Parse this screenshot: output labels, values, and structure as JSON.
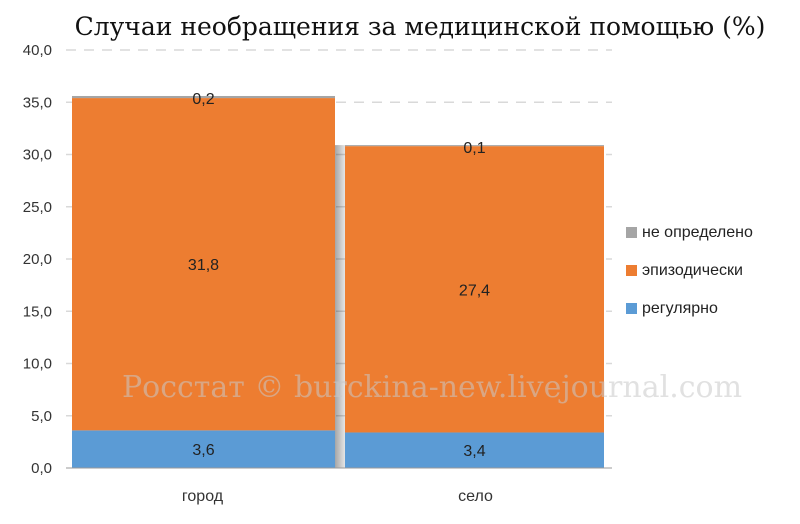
{
  "chart_data": {
    "type": "bar",
    "stacked": true,
    "title": "Случаи необращения за медицинской помощью (%)",
    "categories": [
      "город",
      "село"
    ],
    "series": [
      {
        "name": "регулярно",
        "values": [
          3.6,
          3.4
        ],
        "labels": [
          "3,6",
          "3,4"
        ],
        "color": "#5B9BD5"
      },
      {
        "name": "эпизодически",
        "values": [
          31.8,
          27.4
        ],
        "labels": [
          "31,8",
          "27,4"
        ],
        "color": "#ED7D31"
      },
      {
        "name": "не определено",
        "values": [
          0.2,
          0.1
        ],
        "labels": [
          "0,2",
          "0,1"
        ],
        "color": "#A5A5A5"
      }
    ],
    "ylim": [
      0,
      40
    ],
    "yticks": [
      "0,0",
      "5,0",
      "10,0",
      "15,0",
      "20,0",
      "25,0",
      "30,0",
      "35,0",
      "40,0"
    ],
    "grid": true,
    "legend_position": "right",
    "legend_order": [
      "не определено",
      "эпизодически",
      "регулярно"
    ]
  },
  "watermark": "Росстат © burckina-new.livejournal.com"
}
